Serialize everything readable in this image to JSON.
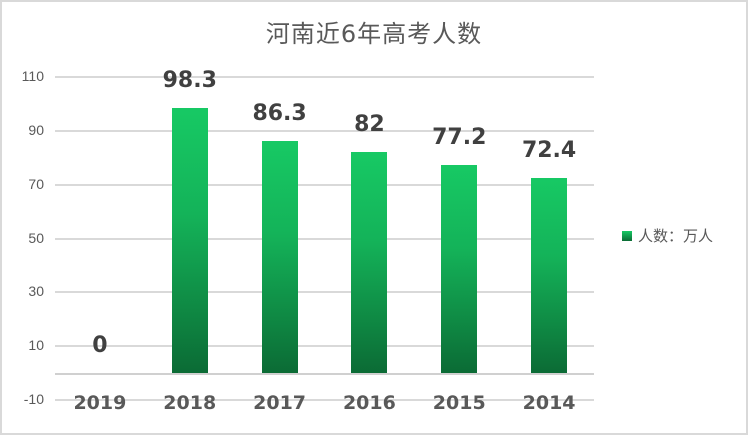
{
  "chart_data": {
    "type": "bar",
    "title": "河南近6年高考人数",
    "categories": [
      "2019",
      "2018",
      "2017",
      "2016",
      "2015",
      "2014"
    ],
    "series": [
      {
        "name": "人数：万人",
        "values": [
          0,
          98.3,
          86.3,
          82,
          77.2,
          72.4
        ]
      }
    ],
    "data_labels": [
      "0",
      "98.3",
      "86.3",
      "82",
      "77.2",
      "72.4"
    ],
    "xlabel": "",
    "ylabel": "",
    "ylim": [
      -10,
      110
    ],
    "yticks": [
      110,
      90,
      70,
      50,
      30,
      10,
      -10
    ],
    "ytick_labels": [
      "110",
      "90",
      "70",
      "50",
      "30",
      "10",
      "-10"
    ],
    "grid": true,
    "legend_position": "right",
    "bar_color_top": "#17c964",
    "bar_color_bottom": "#0b6b35"
  }
}
